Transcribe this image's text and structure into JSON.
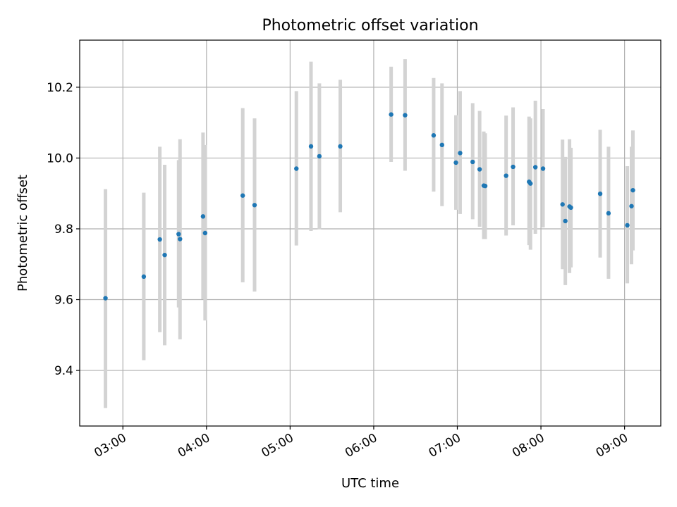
{
  "chart_data": {
    "type": "scatter",
    "title": "Photometric offset variation",
    "xlabel": "UTC time",
    "ylabel": "Photometric offset",
    "x_unit": "hours UTC",
    "xlim": [
      2.4833,
      9.4333
    ],
    "ylim": [
      9.243,
      10.333
    ],
    "grid": true,
    "legend": "none",
    "marker_color": "#1f77b4",
    "errorbar_color": "#d3d3d3",
    "x_ticks": [
      {
        "value": 3,
        "label": "03:00"
      },
      {
        "value": 4,
        "label": "04:00"
      },
      {
        "value": 5,
        "label": "05:00"
      },
      {
        "value": 6,
        "label": "06:00"
      },
      {
        "value": 7,
        "label": "07:00"
      },
      {
        "value": 8,
        "label": "08:00"
      },
      {
        "value": 9,
        "label": "09:00"
      }
    ],
    "y_ticks": [
      {
        "value": 9.4,
        "label": "9.4"
      },
      {
        "value": 9.6,
        "label": "9.6"
      },
      {
        "value": 9.8,
        "label": "9.8"
      },
      {
        "value": 10.0,
        "label": "10.0"
      },
      {
        "value": 10.2,
        "label": "10.2"
      }
    ],
    "points": [
      {
        "x": 2.7917,
        "y": 9.604,
        "lo": 9.294,
        "hi": 9.912
      },
      {
        "x": 3.25,
        "y": 9.665,
        "lo": 9.429,
        "hi": 9.902
      },
      {
        "x": 3.4417,
        "y": 9.77,
        "lo": 9.508,
        "hi": 10.032
      },
      {
        "x": 3.5,
        "y": 9.726,
        "lo": 9.471,
        "hi": 9.981
      },
      {
        "x": 3.6667,
        "y": 9.785,
        "lo": 9.578,
        "hi": 9.994
      },
      {
        "x": 3.6833,
        "y": 9.771,
        "lo": 9.488,
        "hi": 10.053
      },
      {
        "x": 3.9583,
        "y": 9.835,
        "lo": 9.601,
        "hi": 10.072
      },
      {
        "x": 3.9833,
        "y": 9.788,
        "lo": 9.541,
        "hi": 10.037
      },
      {
        "x": 4.4333,
        "y": 9.894,
        "lo": 9.649,
        "hi": 10.141
      },
      {
        "x": 4.575,
        "y": 9.867,
        "lo": 9.623,
        "hi": 10.112
      },
      {
        "x": 5.075,
        "y": 9.97,
        "lo": 9.753,
        "hi": 10.189
      },
      {
        "x": 5.25,
        "y": 10.033,
        "lo": 9.794,
        "hi": 10.272
      },
      {
        "x": 5.35,
        "y": 10.005,
        "lo": 9.799,
        "hi": 10.211
      },
      {
        "x": 5.6,
        "y": 10.033,
        "lo": 9.847,
        "hi": 10.221
      },
      {
        "x": 6.2083,
        "y": 10.123,
        "lo": 9.989,
        "hi": 10.258
      },
      {
        "x": 6.375,
        "y": 10.121,
        "lo": 9.964,
        "hi": 10.279
      },
      {
        "x": 6.7167,
        "y": 10.064,
        "lo": 9.905,
        "hi": 10.226
      },
      {
        "x": 6.8167,
        "y": 10.037,
        "lo": 9.864,
        "hi": 10.211
      },
      {
        "x": 6.9833,
        "y": 9.987,
        "lo": 9.854,
        "hi": 10.121
      },
      {
        "x": 7.0333,
        "y": 10.014,
        "lo": 9.842,
        "hi": 10.189
      },
      {
        "x": 7.1833,
        "y": 9.989,
        "lo": 9.827,
        "hi": 10.155
      },
      {
        "x": 7.2667,
        "y": 9.968,
        "lo": 9.806,
        "hi": 10.133
      },
      {
        "x": 7.3167,
        "y": 9.922,
        "lo": 9.771,
        "hi": 10.075
      },
      {
        "x": 7.3333,
        "y": 9.921,
        "lo": 9.771,
        "hi": 10.07
      },
      {
        "x": 7.5833,
        "y": 9.95,
        "lo": 9.781,
        "hi": 10.12
      },
      {
        "x": 7.6667,
        "y": 9.975,
        "lo": 9.81,
        "hi": 10.143
      },
      {
        "x": 7.8583,
        "y": 9.933,
        "lo": 9.754,
        "hi": 10.117
      },
      {
        "x": 7.875,
        "y": 9.928,
        "lo": 9.741,
        "hi": 10.112
      },
      {
        "x": 7.9333,
        "y": 9.974,
        "lo": 9.786,
        "hi": 10.162
      },
      {
        "x": 8.025,
        "y": 9.97,
        "lo": 9.804,
        "hi": 10.138
      },
      {
        "x": 8.2583,
        "y": 9.869,
        "lo": 9.686,
        "hi": 10.052
      },
      {
        "x": 8.2917,
        "y": 9.822,
        "lo": 9.641,
        "hi": 10.003
      },
      {
        "x": 8.3417,
        "y": 9.863,
        "lo": 9.675,
        "hi": 10.053
      },
      {
        "x": 8.3583,
        "y": 9.86,
        "lo": 9.691,
        "hi": 10.029
      },
      {
        "x": 8.7083,
        "y": 9.899,
        "lo": 9.719,
        "hi": 10.08
      },
      {
        "x": 8.8083,
        "y": 9.844,
        "lo": 9.659,
        "hi": 10.032
      },
      {
        "x": 9.0333,
        "y": 9.81,
        "lo": 9.646,
        "hi": 9.977
      },
      {
        "x": 9.0833,
        "y": 9.864,
        "lo": 9.7,
        "hi": 10.032
      },
      {
        "x": 9.1,
        "y": 9.909,
        "lo": 9.739,
        "hi": 10.078
      }
    ]
  }
}
